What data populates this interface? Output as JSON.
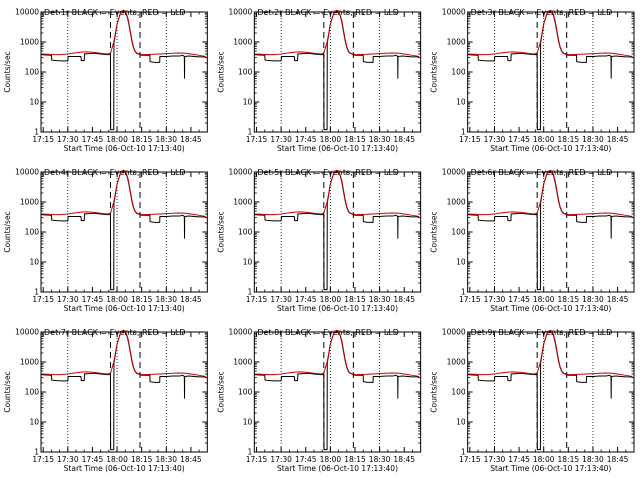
{
  "chart_data": {
    "type": "line",
    "panel_titles": [
      "Det 1r BLACK = Events, RED = LLD",
      "Det 2r BLACK = Events, RED = LLD",
      "Det 3r BLACK = Events, RED = LLD",
      "Det 4r BLACK = Events, RED = LLD",
      "Det 5r BLACK = Events, RED = LLD",
      "Det 6r BLACK = Events, RED = LLD",
      "Det 7r BLACK = Events, RED = LLD",
      "Det 8r BLACK = Events, RED = LLD",
      "Det 9r BLACK = Events, RED = LLD"
    ],
    "xlabel": "Start Time (06-Oct-10 17:13:40)",
    "ylabel": "Counts/sec",
    "x_tick_labels": [
      "17:15",
      "17:30",
      "17:45",
      "18:00",
      "18:15",
      "18:30",
      "18:45"
    ],
    "x_ticks_min": [
      15,
      30,
      45,
      60,
      75,
      90,
      105
    ],
    "xlim_min": [
      13.67,
      115
    ],
    "y_scale": "log",
    "ylim": [
      1,
      10000
    ],
    "y_ticks": [
      1,
      10,
      100,
      1000,
      10000
    ],
    "y_tick_labels": [
      "1",
      "10",
      "100",
      "1000",
      "10000"
    ],
    "dotted_vlines_min": [
      30,
      60,
      90
    ],
    "dashed_vlines_min": [
      56,
      74
    ],
    "series": [
      {
        "color": "#cc0000",
        "x_min": [
          13.67,
          18,
          22,
          26,
          30,
          34,
          38,
          42,
          46,
          50,
          54,
          56,
          58,
          60,
          62,
          64,
          65,
          66,
          67,
          68,
          69,
          70,
          71,
          72,
          73,
          74,
          75,
          76,
          78,
          82,
          86,
          90,
          94,
          98,
          102,
          106,
          110,
          114
        ],
        "y": [
          400,
          390,
          380,
          380,
          400,
          430,
          460,
          470,
          450,
          420,
          400,
          420,
          1000,
          4000,
          9000,
          11500,
          10500,
          8000,
          5000,
          2500,
          1200,
          700,
          500,
          430,
          410,
          400,
          380,
          380,
          385,
          390,
          400,
          410,
          420,
          430,
          420,
          390,
          360,
          330
        ]
      },
      {
        "color": "#000000",
        "x_min": [
          13.67,
          17,
          20,
          20.2,
          23,
          26,
          30,
          30.2,
          34,
          38,
          38.2,
          40,
          40.2,
          46,
          50,
          54,
          56,
          56.1,
          58,
          58.1,
          60,
          62,
          64,
          65,
          66,
          67,
          68,
          69,
          70,
          71,
          72,
          73,
          74,
          75,
          75.1,
          78,
          80,
          80.1,
          83,
          86,
          86.1,
          90,
          94,
          98,
          100,
          101,
          101.1,
          101.2,
          104,
          107,
          110,
          114
        ],
        "y": [
          380,
          370,
          360,
          250,
          240,
          235,
          235,
          330,
          330,
          330,
          240,
          240,
          400,
          420,
          400,
          380,
          380,
          1.2,
          1.2,
          900,
          4000,
          9000,
          11000,
          10000,
          7500,
          4500,
          2200,
          1100,
          650,
          480,
          420,
          400,
          380,
          360,
          360,
          360,
          360,
          220,
          210,
          210,
          330,
          330,
          340,
          340,
          360,
          330,
          60,
          330,
          340,
          330,
          320,
          320
        ]
      }
    ]
  }
}
